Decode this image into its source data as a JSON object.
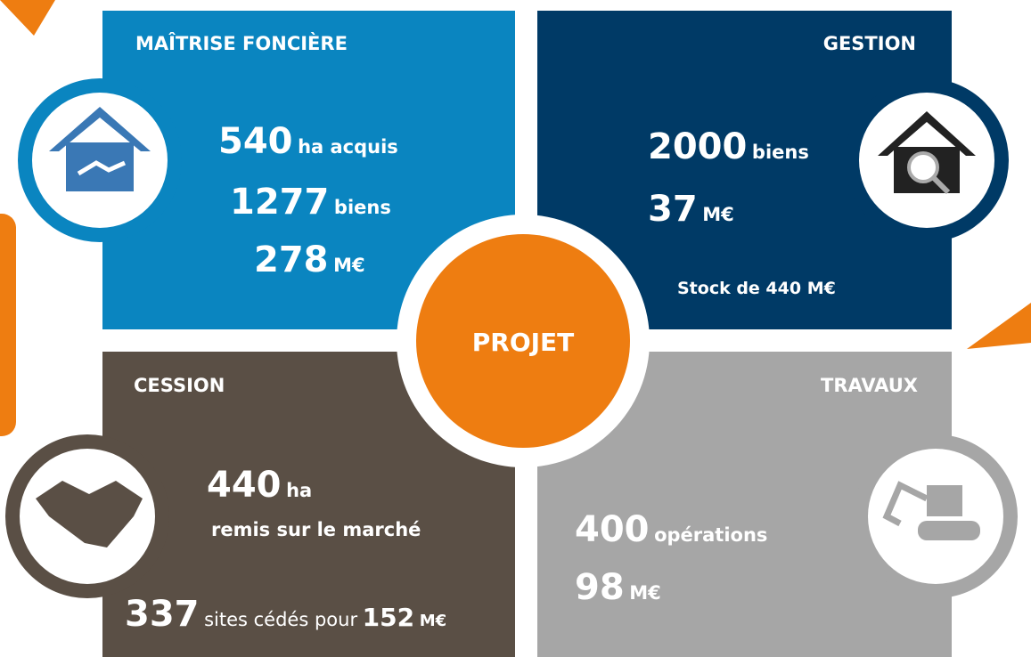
{
  "center": "PROJET",
  "quadrants": [
    {
      "title": "MAÎTRISE FONCIÈRE",
      "lines": [
        {
          "number": 540,
          "unit": "ha acquis"
        },
        {
          "number": 1277,
          "unit": "biens"
        },
        {
          "number": 278,
          "unit": "M€"
        }
      ]
    },
    {
      "title": "GESTION",
      "lines": [
        {
          "number": 2000,
          "unit": "biens"
        },
        {
          "number": 37,
          "unit": "M€"
        }
      ],
      "note": "Stock de 440 M€"
    },
    {
      "title": "CESSION",
      "lines": [
        {
          "number": 440,
          "unit": "ha"
        }
      ],
      "note": "remis sur le marché",
      "footer": {
        "number": 337,
        "text": "sites cédés pour",
        "amount": 152,
        "unit": "M€"
      }
    },
    {
      "title": "TRAVAUX",
      "lines": [
        {
          "number": 400,
          "unit": "opérations"
        },
        {
          "number": 98,
          "unit": "M€"
        }
      ]
    }
  ]
}
